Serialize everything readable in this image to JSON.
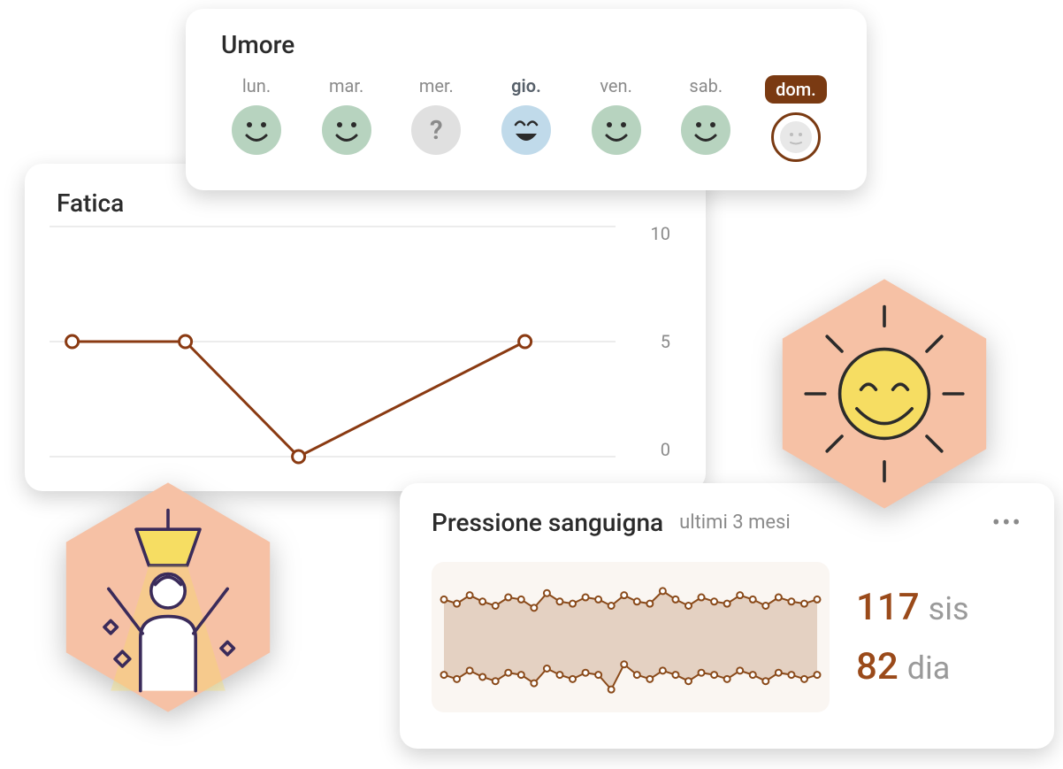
{
  "umore": {
    "title": "Umore",
    "days": [
      {
        "label": "lun.",
        "mood": "happy",
        "color": "#b7d3bf"
      },
      {
        "label": "mar.",
        "mood": "happy",
        "color": "#b7d3bf"
      },
      {
        "label": "mer.",
        "mood": "unknown",
        "color": "#e0e0e0"
      },
      {
        "label": "gio.",
        "mood": "laugh",
        "color": "#c0daea",
        "highlight": true
      },
      {
        "label": "ven.",
        "mood": "happy",
        "color": "#b7d3bf"
      },
      {
        "label": "sab.",
        "mood": "happy",
        "color": "#b7d3bf"
      },
      {
        "label": "dom.",
        "mood": "empty",
        "color": "#ffffff",
        "active": true
      }
    ]
  },
  "fatica": {
    "title": "Fatica",
    "chart": {
      "type": "line",
      "values": [
        5,
        5,
        0,
        null,
        5
      ],
      "xcount": 5,
      "ylim": [
        0,
        10
      ],
      "yticks": [
        0,
        5,
        10
      ],
      "line_color": "#8a3a12",
      "line_width": 3,
      "marker_radius": 7,
      "marker_fill": "#ffffff",
      "marker_stroke": "#8a3a12",
      "marker_stroke_width": 3,
      "grid_color": "#d8d8d8",
      "background_color": "#ffffff"
    }
  },
  "pressione": {
    "title": "Pressione sanguigna",
    "subtitle": "ultimi 3 mesi",
    "more_icon": "•••",
    "readings": {
      "systolic": {
        "value": "117",
        "unit": "sis"
      },
      "diastolic": {
        "value": "82",
        "unit": "dia"
      }
    },
    "chart": {
      "type": "range-line",
      "background_color": "#faf6f2",
      "band_color": "#d1b29a",
      "band_opacity": 0.55,
      "line_color": "#8a4a1a",
      "line_width": 2,
      "marker_radius": 3.5,
      "marker_fill": "#ffffff",
      "marker_stroke": "#8a4a1a",
      "marker_stroke_width": 2,
      "n_points": 30,
      "systolic_series": [
        118,
        116,
        120,
        117,
        115,
        119,
        118,
        114,
        121,
        117,
        116,
        119,
        118,
        115,
        120,
        117,
        116,
        122,
        118,
        115,
        119,
        117,
        116,
        120,
        118,
        115,
        119,
        117,
        116,
        118
      ],
      "diastolic_series": [
        82,
        80,
        84,
        81,
        79,
        83,
        82,
        78,
        85,
        82,
        80,
        83,
        82,
        75,
        87,
        82,
        80,
        84,
        82,
        79,
        83,
        82,
        80,
        84,
        82,
        79,
        83,
        82,
        80,
        82
      ],
      "y_range_for_draw": [
        70,
        130
      ]
    }
  },
  "badges": {
    "sun": {
      "hex_fill": "#f6c1a5",
      "sun_fill": "#f6dd62",
      "stroke": "#2b2b2b"
    },
    "person": {
      "hex_fill": "#f6c1a5",
      "lamp_fill": "#f6dd62",
      "stroke": "#3a2b5a"
    }
  },
  "colors": {
    "card_bg": "#ffffff",
    "text_primary": "#2b2b2b",
    "text_secondary": "#8a8a8a",
    "accent_brown": "#7a3a12",
    "chart_brown": "#8a3a12"
  }
}
